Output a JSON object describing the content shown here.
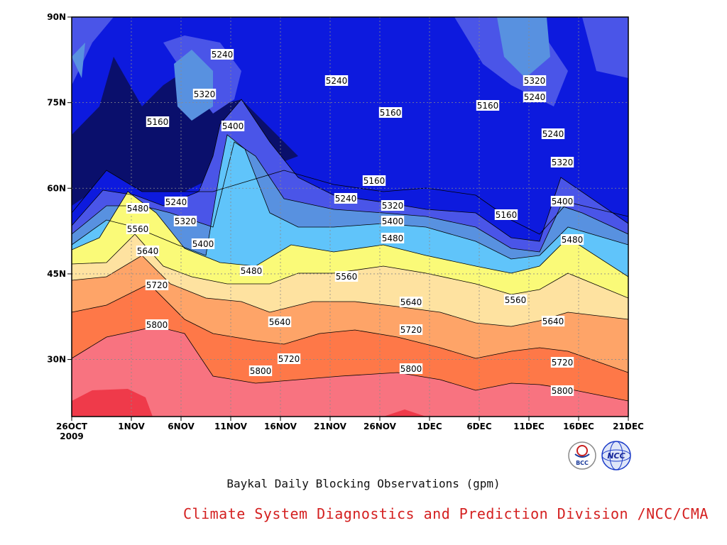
{
  "chart_data": {
    "type": "heatmap",
    "subtype": "filled-contour",
    "title": "Baykal Daily Blocking Observations (gpm)",
    "credit": "Climate System Diagnostics and Prediction Division /NCC/CMA",
    "x_ticks": [
      "26OCT",
      "1NOV",
      "6NOV",
      "11NOV",
      "16NOV",
      "21NOV",
      "26NOV",
      "1DEC",
      "6DEC",
      "11DEC",
      "16DEC",
      "21DEC"
    ],
    "x_year_label": "2009",
    "x_range": [
      "2009-10-26",
      "2009-12-21"
    ],
    "y_ticks": [
      "30N",
      "45N",
      "60N",
      "75N",
      "90N"
    ],
    "y_range": [
      20,
      90
    ],
    "levels": [
      5160,
      5240,
      5320,
      5400,
      5480,
      5560,
      5640,
      5720,
      5800
    ],
    "colors": [
      "#0a0f6c",
      "#0d1ade",
      "#4a55e8",
      "#5891e0",
      "#60c4fa",
      "#fafa78",
      "#fee2a0",
      "#fea468",
      "#fe7848",
      "#f87380",
      "#ef3a4a"
    ],
    "grid": true,
    "contour_labels": [
      "5160",
      "5160",
      "5160",
      "5160",
      "5160",
      "5240",
      "5240",
      "5240",
      "5240",
      "5240",
      "5240",
      "5320",
      "5320",
      "5320",
      "5320",
      "5320",
      "5400",
      "5400",
      "5400",
      "5400",
      "5480",
      "5480",
      "5480",
      "5480",
      "5560",
      "5560",
      "5560",
      "5640",
      "5640",
      "5640",
      "5640",
      "5720",
      "5720",
      "5720",
      "5720",
      "5800",
      "5800",
      "5800",
      "5800"
    ]
  },
  "logos": [
    "BCC",
    "NCC"
  ]
}
